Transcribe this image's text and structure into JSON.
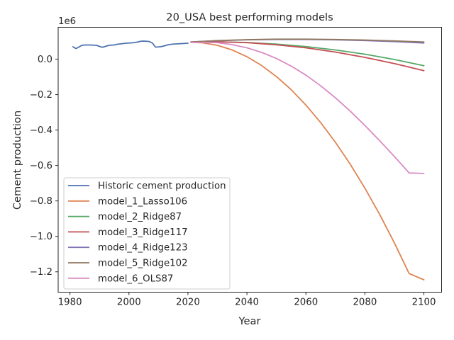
{
  "chart_data": {
    "type": "line",
    "title": "20_USA best performing models",
    "xlabel": "Year",
    "ylabel": "Cement production",
    "y_offset_label": "1e6",
    "xlim": [
      1976,
      2106
    ],
    "ylim": [
      -1.315,
      0.18
    ],
    "xticks": [
      1980,
      2000,
      2020,
      2040,
      2060,
      2080,
      2100
    ],
    "yticks": [
      0.0,
      -0.2,
      -0.4,
      -0.6,
      -0.8,
      -1.0,
      -1.2
    ],
    "ytick_labels": [
      "0.0",
      "−0.2",
      "−0.4",
      "−0.6",
      "−0.8",
      "−1.0",
      "−1.2"
    ],
    "grid": false,
    "legend_position": "lower-left",
    "series": [
      {
        "name": "Historic cement production",
        "color": "#4c72b0",
        "x": [
          1981,
          1982,
          1983,
          1984,
          1985,
          1986,
          1987,
          1988,
          1989,
          1990,
          1991,
          1992,
          1993,
          1994,
          1995,
          1996,
          1997,
          1998,
          1999,
          2000,
          2001,
          2002,
          2003,
          2004,
          2005,
          2006,
          2007,
          2008,
          2009,
          2010,
          2011,
          2012,
          2013,
          2014,
          2015,
          2016,
          2017,
          2018,
          2019,
          2020
        ],
        "y": [
          0.07,
          0.06,
          0.068,
          0.078,
          0.08,
          0.08,
          0.08,
          0.079,
          0.078,
          0.072,
          0.067,
          0.072,
          0.077,
          0.079,
          0.08,
          0.084,
          0.086,
          0.088,
          0.09,
          0.091,
          0.092,
          0.094,
          0.097,
          0.101,
          0.102,
          0.101,
          0.099,
          0.09,
          0.068,
          0.069,
          0.071,
          0.075,
          0.08,
          0.083,
          0.085,
          0.086,
          0.087,
          0.088,
          0.089,
          0.09
        ]
      },
      {
        "name": "model_1_Lasso106",
        "color": "#dd8452",
        "x": [
          2021,
          2025,
          2030,
          2035,
          2040,
          2045,
          2050,
          2055,
          2060,
          2065,
          2070,
          2075,
          2080,
          2085,
          2090,
          2095,
          2100
        ],
        "y": [
          0.095,
          0.092,
          0.078,
          0.052,
          0.014,
          -0.036,
          -0.098,
          -0.172,
          -0.259,
          -0.358,
          -0.469,
          -0.592,
          -0.728,
          -0.876,
          -1.037,
          -1.21,
          -1.245
        ]
      },
      {
        "name": "model_2_Ridge87",
        "color": "#55a868",
        "x": [
          2021,
          2030,
          2040,
          2050,
          2060,
          2070,
          2080,
          2090,
          2100
        ],
        "y": [
          0.095,
          0.098,
          0.094,
          0.085,
          0.071,
          0.052,
          0.028,
          -0.002,
          -0.037
        ]
      },
      {
        "name": "model_3_Ridge117",
        "color": "#c44e52",
        "x": [
          2021,
          2030,
          2040,
          2050,
          2060,
          2070,
          2080,
          2090,
          2100
        ],
        "y": [
          0.095,
          0.098,
          0.093,
          0.081,
          0.064,
          0.04,
          0.01,
          -0.025,
          -0.065
        ]
      },
      {
        "name": "model_4_Ridge123",
        "color": "#8172b3",
        "x": [
          2021,
          2030,
          2040,
          2050,
          2060,
          2070,
          2080,
          2090,
          2100
        ],
        "y": [
          0.097,
          0.104,
          0.109,
          0.111,
          0.111,
          0.109,
          0.105,
          0.099,
          0.091
        ]
      },
      {
        "name": "model_5_Ridge102",
        "color": "#937860",
        "x": [
          2021,
          2030,
          2040,
          2050,
          2060,
          2070,
          2080,
          2090,
          2100
        ],
        "y": [
          0.097,
          0.105,
          0.11,
          0.113,
          0.113,
          0.111,
          0.108,
          0.103,
          0.097
        ]
      },
      {
        "name": "model_6_OLS87",
        "color": "#da8bc3",
        "x": [
          2021,
          2030,
          2035,
          2040,
          2045,
          2050,
          2055,
          2060,
          2065,
          2070,
          2075,
          2080,
          2085,
          2090,
          2095,
          2100
        ],
        "y": [
          0.095,
          0.093,
          0.082,
          0.064,
          0.038,
          0.004,
          -0.039,
          -0.09,
          -0.15,
          -0.218,
          -0.293,
          -0.374,
          -0.46,
          -0.549,
          -0.642,
          -0.645
        ]
      }
    ]
  }
}
